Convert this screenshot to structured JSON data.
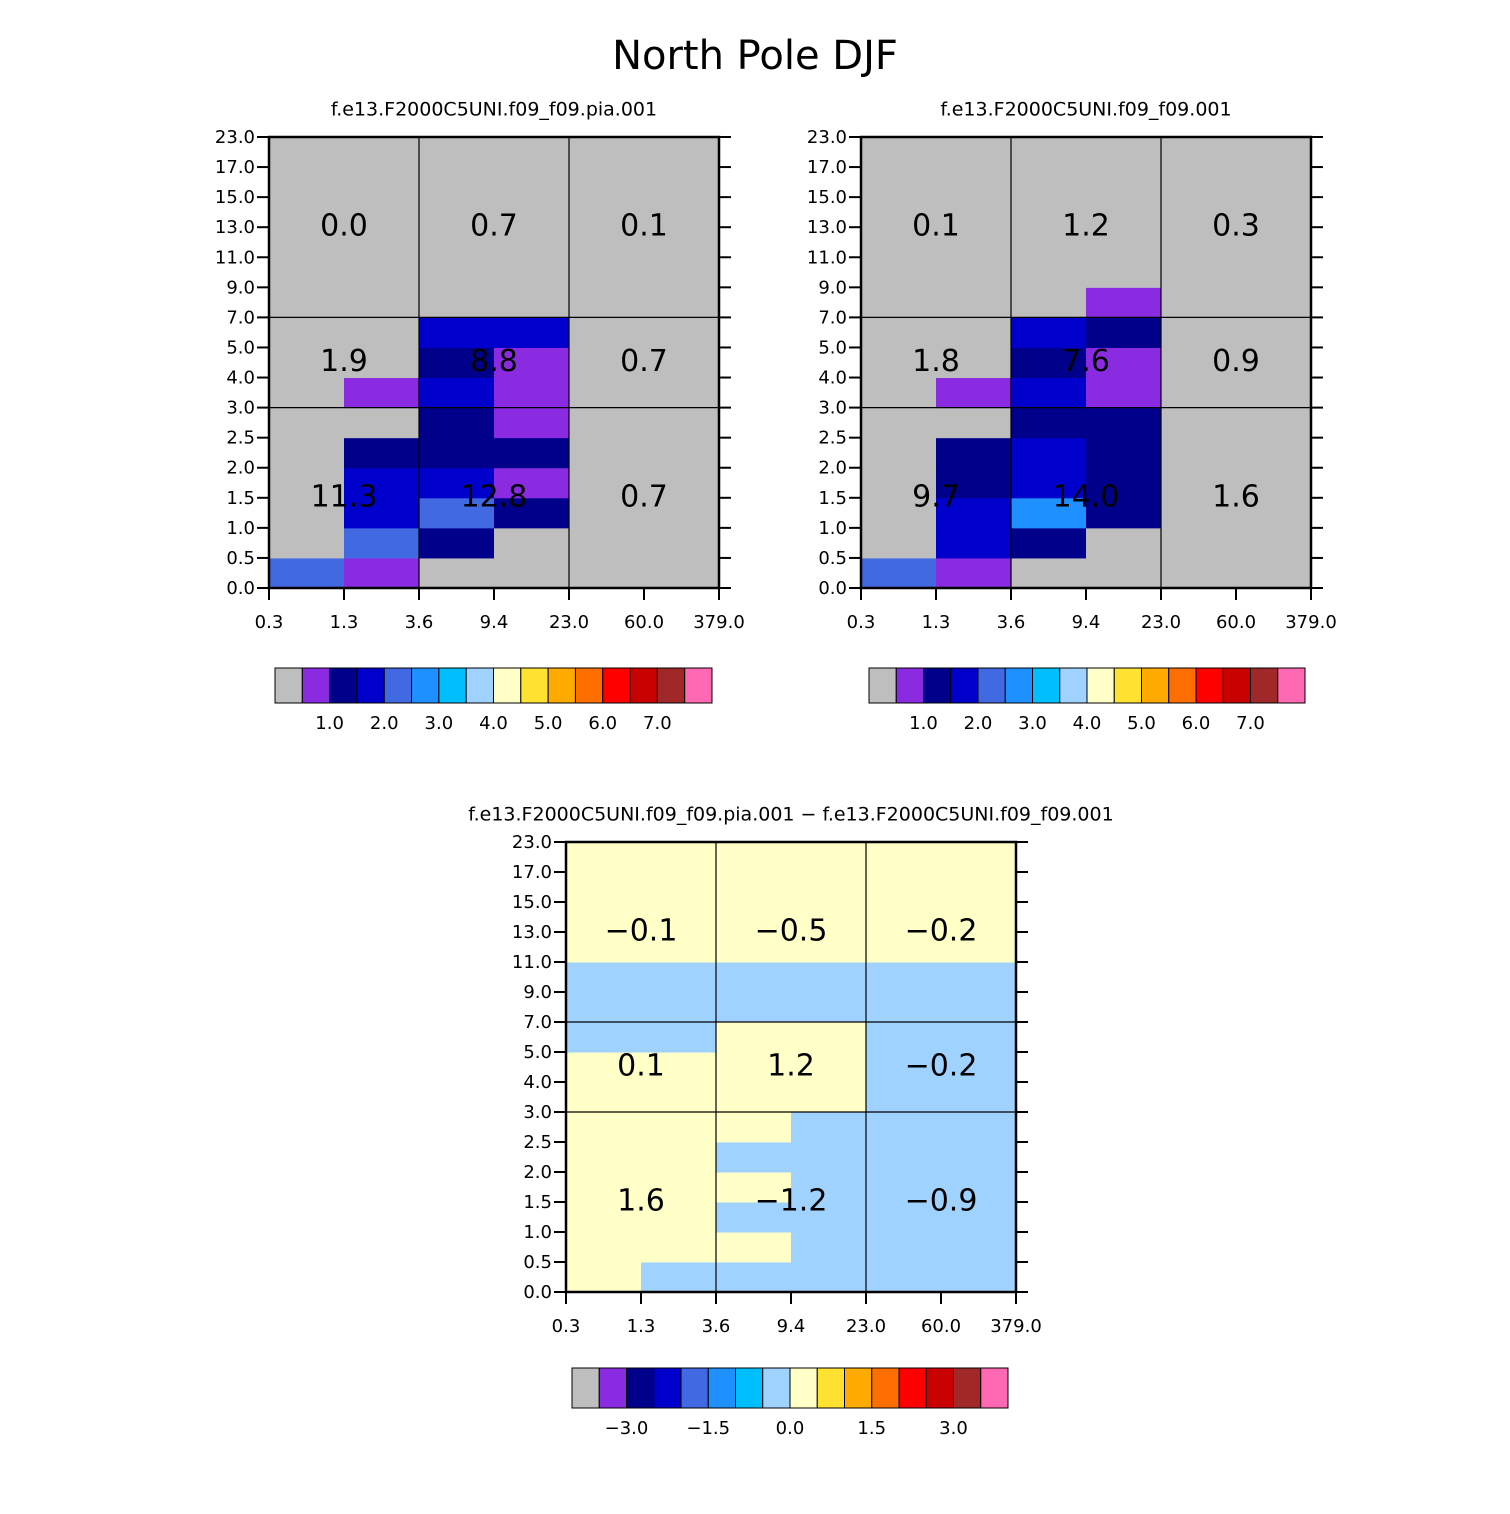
{
  "title": "North Pole DJF",
  "chart_data": [
    {
      "type": "heatmap",
      "title": "f.e13.F2000C5UNI.f09_f09.pia.001",
      "xticks": [
        0.3,
        1.3,
        3.6,
        9.4,
        {
          "value": 23,
          "label": "23.0"
        },
        {
          "value": 60,
          "label": "60.0"
        },
        {
          "value": 379,
          "label": "379.0"
        }
      ],
      "yticks": [
        {
          "value": 0,
          "label": "0.0"
        },
        0.5,
        {
          "value": 1,
          "label": "1.0"
        },
        1.5,
        {
          "value": 2,
          "label": "2.0"
        },
        2.5,
        {
          "value": 3,
          "label": "3.0"
        },
        {
          "value": 4,
          "label": "4.0"
        },
        {
          "value": 5,
          "label": "5.0"
        },
        {
          "value": 7,
          "label": "7.0"
        },
        {
          "value": 9,
          "label": "9.0"
        },
        {
          "value": 11,
          "label": "11.0"
        },
        {
          "value": 13,
          "label": "13.0"
        },
        {
          "value": 15,
          "label": "15.0"
        },
        {
          "value": 17,
          "label": "17.0"
        },
        {
          "value": 23,
          "label": "23.0"
        }
      ],
      "values": [
        [
          2.25,
          0.75,
          0.2,
          0.2,
          0.2,
          0.2
        ],
        [
          0.2,
          2.25,
          1.25,
          0.2,
          0.2,
          0.2
        ],
        [
          0.2,
          1.75,
          2.25,
          1.25,
          0.2,
          0.2
        ],
        [
          0.2,
          1.75,
          1.75,
          0.75,
          0.2,
          0.2
        ],
        [
          0.2,
          1.25,
          1.25,
          1.25,
          0.2,
          0.2
        ],
        [
          0.2,
          0.2,
          1.25,
          0.75,
          0.2,
          0.2
        ],
        [
          0.2,
          0.75,
          1.75,
          0.75,
          0.2,
          0.2
        ],
        [
          0.2,
          0.2,
          1.25,
          0.75,
          0.2,
          0.2
        ],
        [
          0.2,
          0.2,
          1.75,
          1.75,
          0.2,
          0.2
        ],
        [
          0.2,
          0.2,
          0.2,
          0.2,
          0.2,
          0.2
        ],
        [
          0.2,
          0.2,
          0.2,
          0.2,
          0.2,
          0.2
        ],
        [
          0.2,
          0.2,
          0.2,
          0.2,
          0.2,
          0.2
        ],
        [
          0.2,
          0.2,
          0.2,
          0.2,
          0.2,
          0.2
        ],
        [
          0.2,
          0.2,
          0.2,
          0.2,
          0.2,
          0.2
        ],
        [
          0.2,
          0.2,
          0.2,
          0.2,
          0.2,
          0.2
        ]
      ],
      "annotations": {
        "values": [
          [
            0,
            0.7,
            0.1
          ],
          [
            1.9,
            8.8,
            0.7
          ],
          [
            11.3,
            12.8,
            0.7
          ]
        ],
        "labels": [
          [
            "0.0",
            "0.7",
            "0.1"
          ],
          [
            "1.9",
            "8.8",
            "0.7"
          ],
          [
            "11.3",
            "12.8",
            "0.7"
          ]
        ]
      },
      "levels": [
        0.5,
        1,
        1.5,
        2,
        2.5,
        3,
        3.5,
        4,
        4.5,
        5,
        5.5,
        6,
        6.5,
        7,
        7.5
      ],
      "colors": [
        "#bebebe",
        "#8a2be2",
        "#00008b",
        "#0000cd",
        "#4169e1",
        "#1e90ff",
        "#00bfff",
        "#a0d2ff",
        "#ffffc8",
        "#ffe132",
        "#ffaa00",
        "#ff6e00",
        "#ff0000",
        "#c80000",
        "#a02828",
        "#ff69b4"
      ],
      "colorbar_ticks": [
        {
          "value": 1,
          "label": "1.0"
        },
        {
          "value": 2,
          "label": "2.0"
        },
        {
          "value": 3,
          "label": "3.0"
        },
        {
          "value": 4,
          "label": "4.0"
        },
        {
          "value": 5,
          "label": "5.0"
        },
        {
          "value": 6,
          "label": "6.0"
        },
        {
          "value": 7,
          "label": "7.0"
        }
      ]
    },
    {
      "type": "heatmap",
      "title": "f.e13.F2000C5UNI.f09_f09.001",
      "xticks": [
        0.3,
        1.3,
        3.6,
        9.4,
        {
          "value": 23,
          "label": "23.0"
        },
        {
          "value": 60,
          "label": "60.0"
        },
        {
          "value": 379,
          "label": "379.0"
        }
      ],
      "yticks": [
        {
          "value": 0,
          "label": "0.0"
        },
        0.5,
        {
          "value": 1,
          "label": "1.0"
        },
        1.5,
        {
          "value": 2,
          "label": "2.0"
        },
        2.5,
        {
          "value": 3,
          "label": "3.0"
        },
        {
          "value": 4,
          "label": "4.0"
        },
        {
          "value": 5,
          "label": "5.0"
        },
        {
          "value": 7,
          "label": "7.0"
        },
        {
          "value": 9,
          "label": "9.0"
        },
        {
          "value": 11,
          "label": "11.0"
        },
        {
          "value": 13,
          "label": "13.0"
        },
        {
          "value": 15,
          "label": "15.0"
        },
        {
          "value": 17,
          "label": "17.0"
        },
        {
          "value": 23,
          "label": "23.0"
        }
      ],
      "values": [
        [
          2.25,
          0.75,
          0.2,
          0.2,
          0.2,
          0.2
        ],
        [
          0.2,
          1.75,
          1.25,
          0.2,
          0.2,
          0.2
        ],
        [
          0.2,
          1.75,
          2.75,
          1.25,
          0.2,
          0.2
        ],
        [
          0.2,
          1.25,
          1.75,
          1.25,
          0.2,
          0.2
        ],
        [
          0.2,
          1.25,
          1.75,
          1.25,
          0.2,
          0.2
        ],
        [
          0.2,
          0.2,
          1.25,
          1.25,
          0.2,
          0.2
        ],
        [
          0.2,
          0.75,
          1.75,
          0.75,
          0.2,
          0.2
        ],
        [
          0.2,
          0.2,
          1.25,
          0.75,
          0.2,
          0.2
        ],
        [
          0.2,
          0.2,
          1.75,
          1.25,
          0.2,
          0.2
        ],
        [
          0.2,
          0.2,
          0.2,
          0.75,
          0.2,
          0.2
        ],
        [
          0.2,
          0.2,
          0.2,
          0.2,
          0.2,
          0.2
        ],
        [
          0.2,
          0.2,
          0.2,
          0.2,
          0.2,
          0.2
        ],
        [
          0.2,
          0.2,
          0.2,
          0.2,
          0.2,
          0.2
        ],
        [
          0.2,
          0.2,
          0.2,
          0.2,
          0.2,
          0.2
        ],
        [
          0.2,
          0.2,
          0.2,
          0.2,
          0.2,
          0.2
        ]
      ],
      "annotations": {
        "values": [
          [
            0.1,
            1.2,
            0.3
          ],
          [
            1.8,
            7.6,
            0.9
          ],
          [
            9.7,
            14.0,
            1.6
          ]
        ],
        "labels": [
          [
            "0.1",
            "1.2",
            "0.3"
          ],
          [
            "1.8",
            "7.6",
            "0.9"
          ],
          [
            "9.7",
            "14.0",
            "1.6"
          ]
        ]
      },
      "levels": [
        0.5,
        1,
        1.5,
        2,
        2.5,
        3,
        3.5,
        4,
        4.5,
        5,
        5.5,
        6,
        6.5,
        7,
        7.5
      ],
      "colors": [
        "#bebebe",
        "#8a2be2",
        "#00008b",
        "#0000cd",
        "#4169e1",
        "#1e90ff",
        "#00bfff",
        "#a0d2ff",
        "#ffffc8",
        "#ffe132",
        "#ffaa00",
        "#ff6e00",
        "#ff0000",
        "#c80000",
        "#a02828",
        "#ff69b4"
      ],
      "colorbar_ticks": [
        {
          "value": 1,
          "label": "1.0"
        },
        {
          "value": 2,
          "label": "2.0"
        },
        {
          "value": 3,
          "label": "3.0"
        },
        {
          "value": 4,
          "label": "4.0"
        },
        {
          "value": 5,
          "label": "5.0"
        },
        {
          "value": 6,
          "label": "6.0"
        },
        {
          "value": 7,
          "label": "7.0"
        }
      ]
    },
    {
      "type": "heatmap",
      "title": "f.e13.F2000C5UNI.f09_f09.pia.001 − f.e13.F2000C5UNI.f09_f09.001",
      "xticks": [
        0.3,
        1.3,
        3.6,
        9.4,
        {
          "value": 23,
          "label": "23.0"
        },
        {
          "value": 60,
          "label": "60.0"
        },
        {
          "value": 379,
          "label": "379.0"
        }
      ],
      "yticks": [
        {
          "value": 0,
          "label": "0.0"
        },
        0.5,
        {
          "value": 1,
          "label": "1.0"
        },
        1.5,
        {
          "value": 2,
          "label": "2.0"
        },
        2.5,
        {
          "value": 3,
          "label": "3.0"
        },
        {
          "value": 4,
          "label": "4.0"
        },
        {
          "value": 5,
          "label": "5.0"
        },
        {
          "value": 7,
          "label": "7.0"
        },
        {
          "value": 9,
          "label": "9.0"
        },
        {
          "value": 11,
          "label": "11.0"
        },
        {
          "value": 13,
          "label": "13.0"
        },
        {
          "value": 15,
          "label": "15.0"
        },
        {
          "value": 17,
          "label": "17.0"
        },
        {
          "value": 23,
          "label": "23.0"
        }
      ],
      "values": [
        [
          0.25,
          -0.25,
          -0.25,
          -0.25,
          -0.25,
          -0.25
        ],
        [
          0.25,
          0.25,
          0.25,
          -0.25,
          -0.25,
          -0.25
        ],
        [
          0.25,
          0.25,
          -0.25,
          -0.25,
          -0.25,
          -0.25
        ],
        [
          0.25,
          0.25,
          0.25,
          -0.25,
          -0.25,
          -0.25
        ],
        [
          0.25,
          0.25,
          -0.25,
          -0.25,
          -0.25,
          -0.25
        ],
        [
          0.25,
          0.25,
          0.25,
          -0.25,
          -0.25,
          -0.25
        ],
        [
          0.25,
          0.25,
          0.25,
          0.25,
          -0.25,
          -0.25
        ],
        [
          0.25,
          0.25,
          0.25,
          0.25,
          -0.25,
          -0.25
        ],
        [
          -0.25,
          -0.25,
          0.25,
          0.25,
          -0.25,
          -0.25
        ],
        [
          -0.25,
          -0.25,
          -0.25,
          -0.25,
          -0.25,
          -0.25
        ],
        [
          -0.25,
          -0.25,
          -0.25,
          -0.25,
          -0.25,
          -0.25
        ],
        [
          0.25,
          0.25,
          0.25,
          0.25,
          0.25,
          0.25
        ],
        [
          0.25,
          0.25,
          0.25,
          0.25,
          0.25,
          0.25
        ],
        [
          0.25,
          0.25,
          0.25,
          0.25,
          0.25,
          0.25
        ],
        [
          0.25,
          0.25,
          0.25,
          0.25,
          0.25,
          0.25
        ]
      ],
      "annotations": {
        "values": [
          [
            -0.1,
            -0.5,
            -0.2
          ],
          [
            0.1,
            1.2,
            -0.2
          ],
          [
            1.6,
            -1.2,
            -0.9
          ]
        ],
        "labels": [
          [
            "−0.1",
            "−0.5",
            "−0.2"
          ],
          [
            "0.1",
            "1.2",
            "−0.2"
          ],
          [
            "1.6",
            "−1.2",
            "−0.9"
          ]
        ]
      },
      "levels": [
        -3.5,
        -3,
        -2.5,
        -2,
        -1.5,
        -1,
        -0.5,
        0,
        0.5,
        1,
        1.5,
        2,
        2.5,
        3,
        3.5
      ],
      "colors": [
        "#bebebe",
        "#8a2be2",
        "#00008b",
        "#0000cd",
        "#4169e1",
        "#1e90ff",
        "#00bfff",
        "#a0d2ff",
        "#ffffc8",
        "#ffe132",
        "#ffaa00",
        "#ff6e00",
        "#ff0000",
        "#c80000",
        "#a02828",
        "#ff69b4"
      ],
      "colorbar_ticks": [
        {
          "value": -3,
          "label": "−3.0"
        },
        {
          "value": -1.5,
          "label": "−1.5"
        },
        {
          "value": 0,
          "label": "0.0"
        },
        {
          "value": 1.5,
          "label": "1.5"
        },
        {
          "value": 3,
          "label": "3.0"
        }
      ]
    }
  ]
}
